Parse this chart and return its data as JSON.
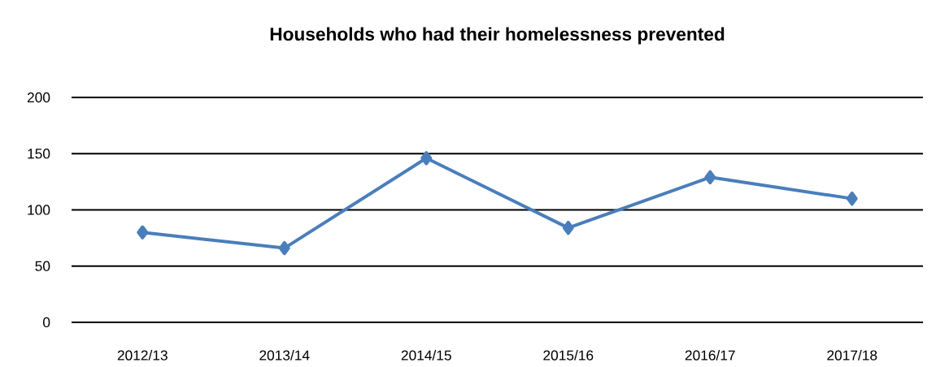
{
  "chart_data": {
    "type": "line",
    "title": "Households who had their homelessness prevented",
    "categories": [
      "2012/13",
      "2013/14",
      "2014/15",
      "2015/16",
      "2016/17",
      "2017/18"
    ],
    "series": [
      {
        "color": "#4a7ebb",
        "values": [
          80,
          66,
          146,
          84,
          129,
          110
        ]
      }
    ],
    "ylim": [
      0,
      200
    ],
    "yticks": [
      0,
      50,
      100,
      150,
      200
    ],
    "grid": "y",
    "marker": "diamond",
    "line_style": "solid"
  }
}
